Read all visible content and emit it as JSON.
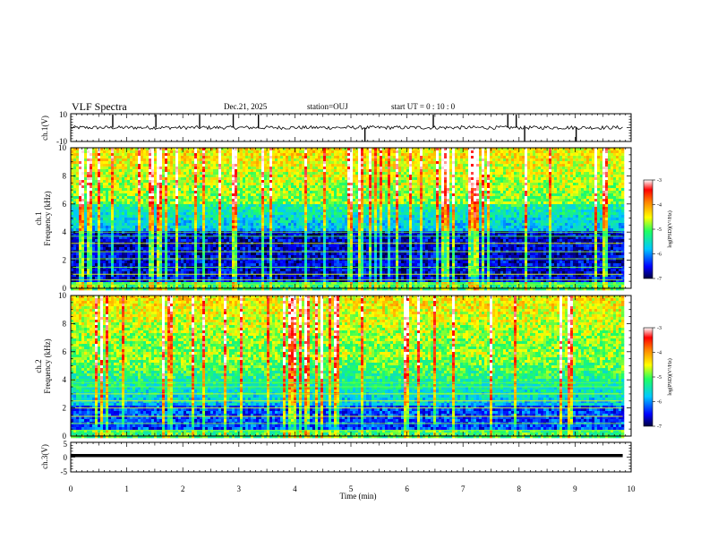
{
  "header": {
    "title": "VLF Spectra",
    "date": "Dec.21, 2025",
    "station": "station=OUJ",
    "start": "start  UT =   0  : 10 : 0"
  },
  "colors": {
    "spectrogram_scale": [
      "#000080",
      "#0000ff",
      "#00d8ff",
      "#20ff60",
      "#ffff00",
      "#ff8000",
      "#ff0000",
      "#ffffff"
    ],
    "trace": "#000000"
  },
  "chart_data": [
    {
      "type": "line",
      "name": "ch1-waveform",
      "ylabel": "ch.1(V)",
      "ylim": [
        -10,
        10
      ],
      "yticks": [
        "10",
        "-10"
      ],
      "x": [
        0,
        10
      ],
      "baseline": 0,
      "noise_amplitude": 1.3,
      "spike_times_min": [
        0.75,
        1.52,
        2.3,
        2.9,
        3.35,
        5.25,
        6.47,
        7.8,
        7.95,
        8.1,
        9.02
      ]
    },
    {
      "type": "heatmap",
      "name": "ch1-spectrogram",
      "ylabel_line1": "ch.1",
      "ylabel_line2": "Frequency (kHz)",
      "ylim": [
        0,
        10
      ],
      "yticks": [
        "0",
        "2",
        "4",
        "6",
        "8",
        "10"
      ],
      "colorbar_label": "log(PSD)(V²/Hz)",
      "colorbar_range": [
        -7,
        -3
      ],
      "colorbar_ticks": [
        "-3",
        "-4",
        "-5",
        "-6",
        "-7"
      ],
      "quiet_band_khz": [
        0.5,
        4.2
      ],
      "horizontal_lines_khz": [
        0.3,
        0.6,
        1.0,
        1.5,
        2.1,
        2.6,
        3.2,
        3.7,
        4.0
      ]
    },
    {
      "type": "heatmap",
      "name": "ch2-spectrogram",
      "ylabel_line1": "ch.2",
      "ylabel_line2": "Frequency (kHz)",
      "ylim": [
        0,
        10
      ],
      "yticks": [
        "0",
        "2",
        "4",
        "6",
        "8",
        "10"
      ],
      "colorbar_label": "log(PSD)(V²/Hz)",
      "colorbar_range": [
        -7,
        -3
      ],
      "colorbar_ticks": [
        "-3",
        "-4",
        "-5",
        "-6",
        "-7"
      ],
      "quiet_band_khz": [
        0.6,
        2.2
      ],
      "horizontal_lines_khz": [
        0.4,
        0.9,
        1.4,
        2.0,
        2.5,
        3.0,
        3.5,
        3.8
      ]
    },
    {
      "type": "line",
      "name": "ch3-waveform",
      "ylabel": "ch.3(V)",
      "ylim": [
        -5,
        5
      ],
      "yticks": [
        "5",
        "0",
        "-5"
      ],
      "x": [
        0,
        10
      ],
      "constant_value": 0
    }
  ],
  "xaxis": {
    "label": "Time  (min)",
    "xlim": [
      0,
      10
    ],
    "ticks": [
      "0",
      "1",
      "2",
      "3",
      "4",
      "5",
      "6",
      "7",
      "8",
      "9",
      "10"
    ],
    "data_end_min": 9.85
  }
}
